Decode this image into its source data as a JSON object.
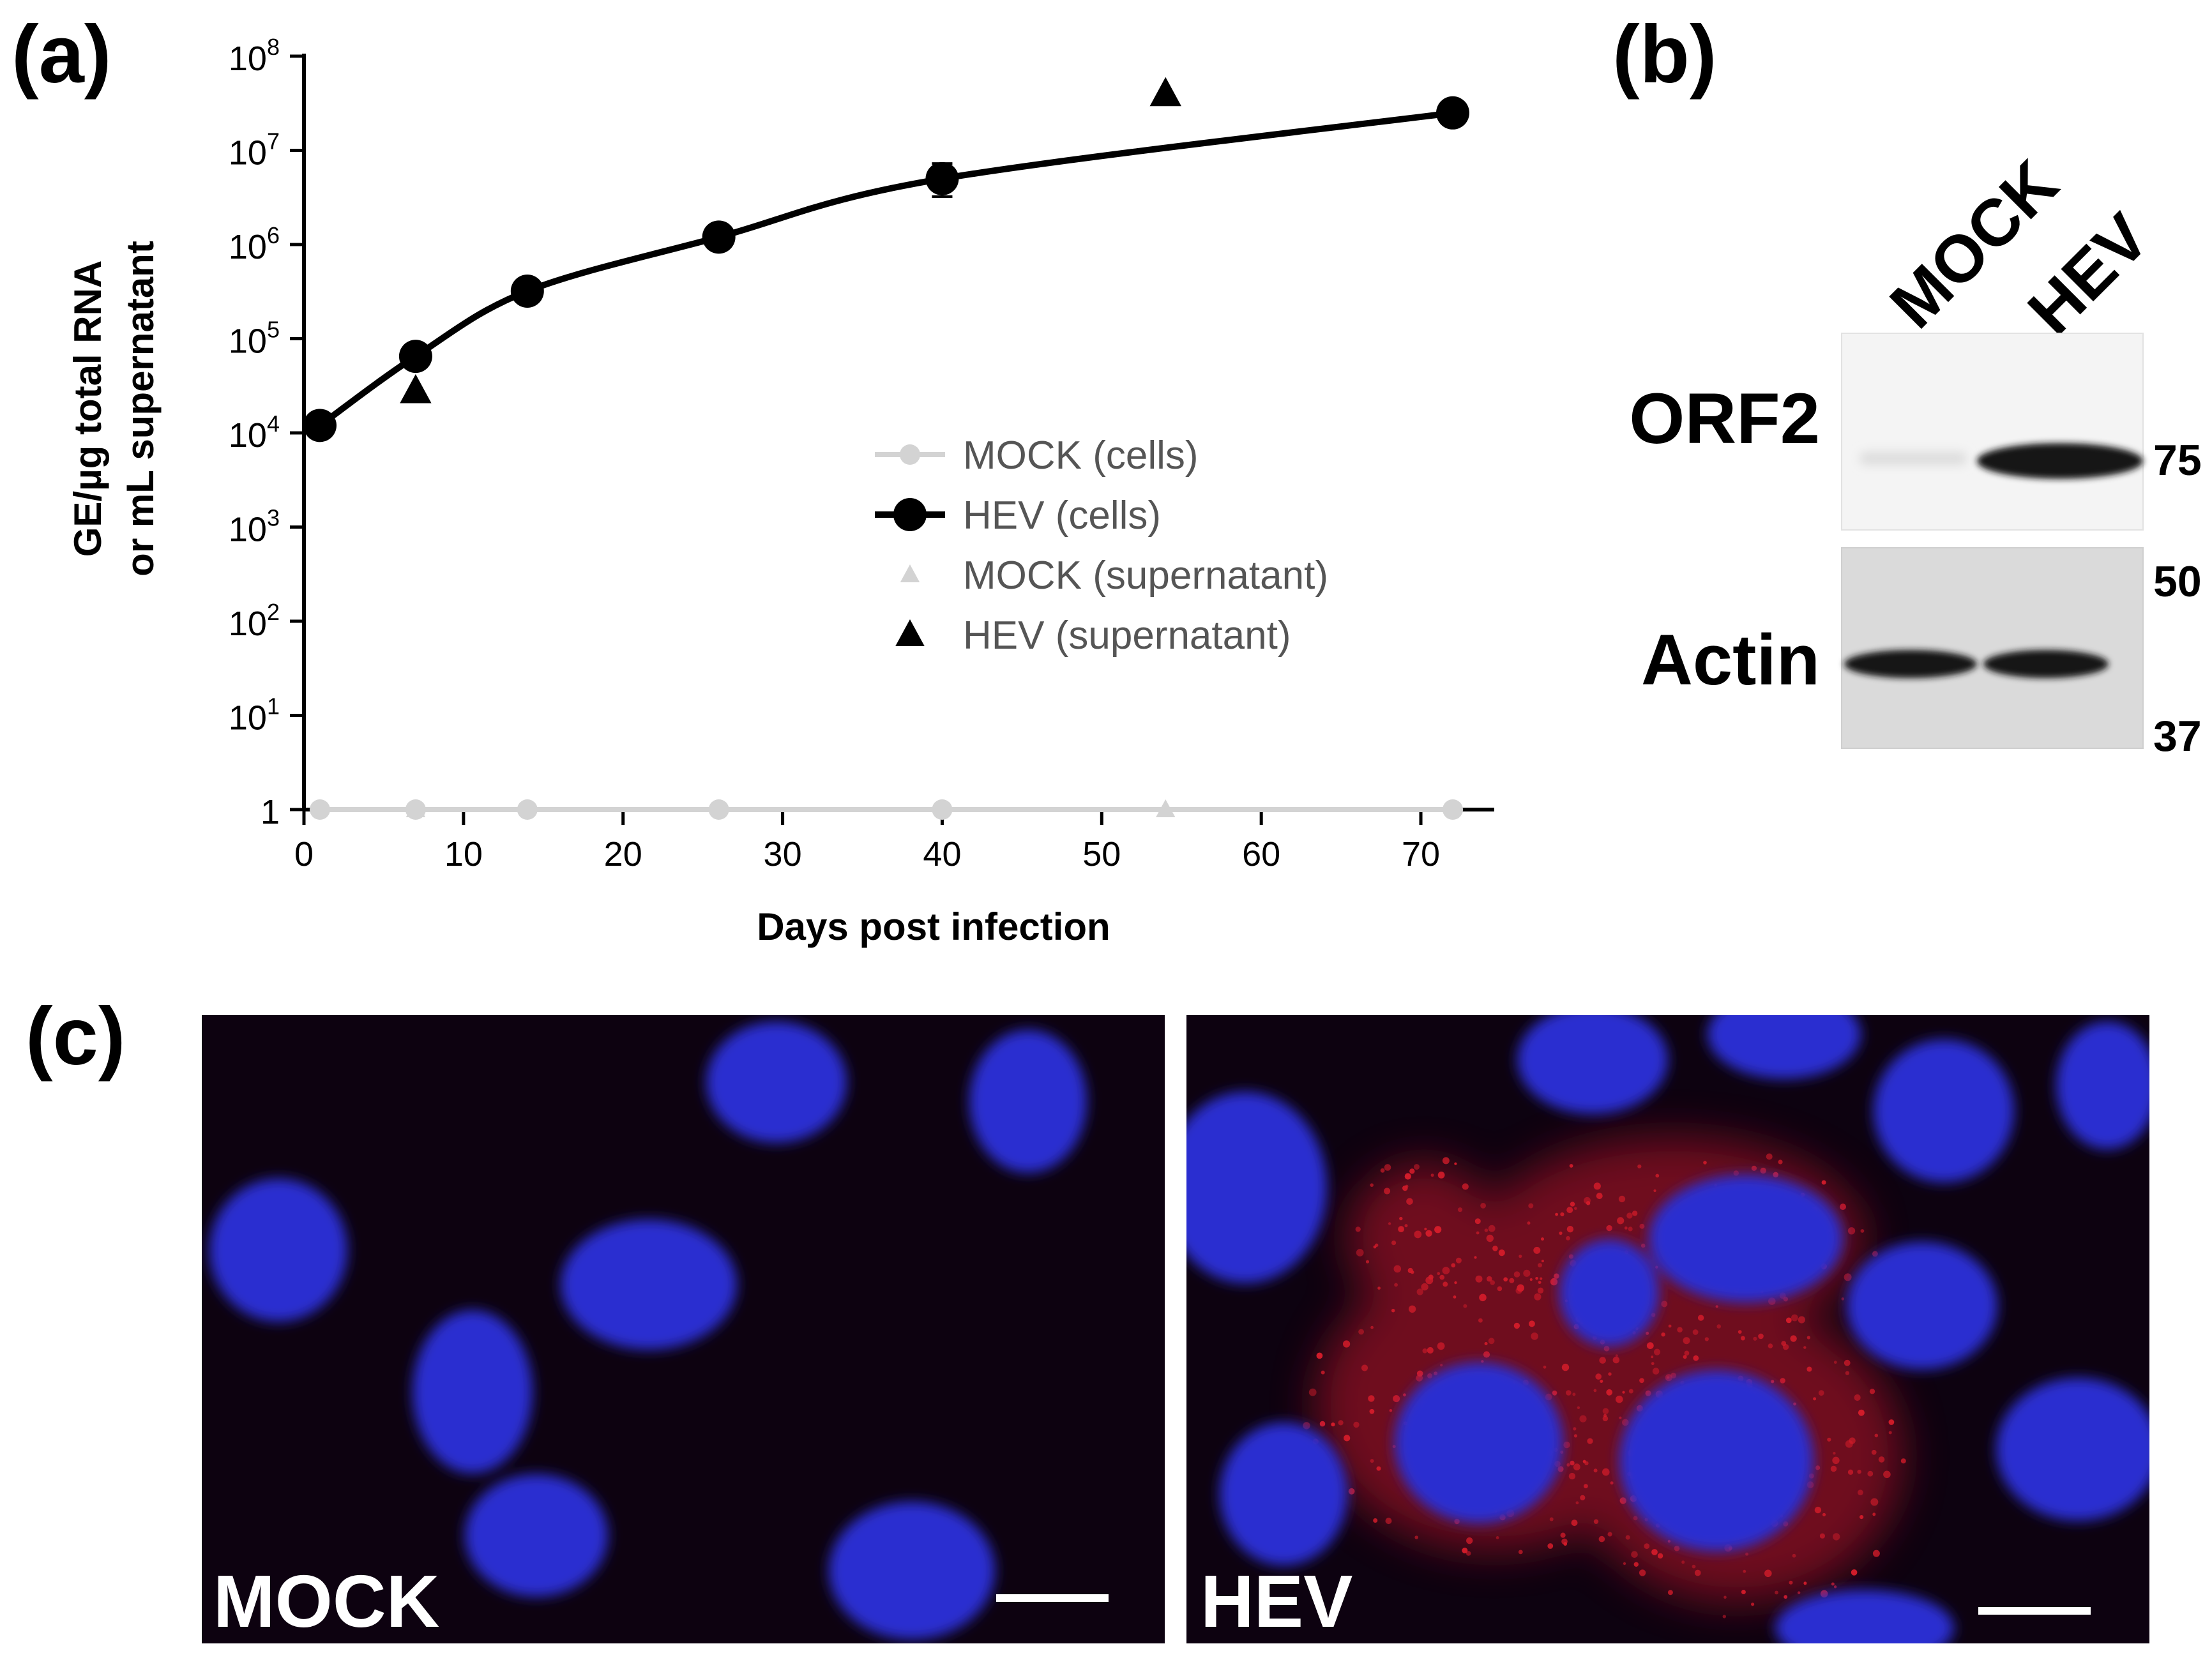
{
  "panels": {
    "a": {
      "label": "(a)"
    },
    "b": {
      "label": "(b)"
    },
    "c": {
      "label": "(c)"
    }
  },
  "chart_data": {
    "type": "line",
    "title": "",
    "xlabel": "Days post infection",
    "ylabel_line1": "GE/µg total RNA",
    "ylabel_line2": "or mL supernatant",
    "xlim": [
      0,
      73
    ],
    "xticks": [
      0,
      10,
      20,
      30,
      40,
      50,
      60,
      70
    ],
    "y_scale": "log",
    "ylim": [
      1,
      100000000
    ],
    "yticks": [
      {
        "value": 1,
        "base": "1",
        "exp": ""
      },
      {
        "value": 10,
        "base": "10",
        "exp": "1"
      },
      {
        "value": 100,
        "base": "10",
        "exp": "2"
      },
      {
        "value": 1000,
        "base": "10",
        "exp": "3"
      },
      {
        "value": 10000,
        "base": "10",
        "exp": "4"
      },
      {
        "value": 100000,
        "base": "10",
        "exp": "5"
      },
      {
        "value": 1000000,
        "base": "10",
        "exp": "6"
      },
      {
        "value": 10000000,
        "base": "10",
        "exp": "7"
      },
      {
        "value": 100000000,
        "base": "10",
        "exp": "8"
      }
    ],
    "legend_position": "center-right",
    "series": [
      {
        "name": "MOCK (cells)",
        "marker": "circle",
        "line": true,
        "color": "#d3d3d3",
        "x": [
          1,
          7,
          14,
          26,
          40,
          72
        ],
        "y": [
          1,
          1,
          1,
          1,
          1,
          1
        ]
      },
      {
        "name": "HEV (cells)",
        "marker": "circle",
        "line": true,
        "color": "#000000",
        "x": [
          1,
          7,
          14,
          26,
          40,
          72
        ],
        "y": [
          12000,
          65000,
          320000,
          1200000,
          5000000,
          25000000
        ],
        "error_at_x": 40
      },
      {
        "name": "MOCK (supernatant)",
        "marker": "triangle",
        "line": false,
        "color": "#d3d3d3",
        "x": [
          7,
          54
        ],
        "y": [
          1,
          1
        ]
      },
      {
        "name": "HEV (supernatant)",
        "marker": "triangle",
        "line": false,
        "color": "#000000",
        "x": [
          7,
          54
        ],
        "y": [
          28000,
          40000000
        ]
      }
    ]
  },
  "western_blot": {
    "lanes": [
      "MOCK",
      "HEV"
    ],
    "rows": [
      {
        "label": "ORF2",
        "bands": [
          "none",
          "strong"
        ]
      },
      {
        "label": "Actin",
        "bands": [
          "strong",
          "strong"
        ]
      }
    ],
    "markers": [
      "75",
      "50",
      "37"
    ]
  },
  "microscopy": {
    "images": [
      {
        "label": "MOCK",
        "stain": "nuclei blue",
        "red_signal": "none"
      },
      {
        "label": "HEV",
        "stain": "nuclei blue",
        "red_signal": "cytoplasmic red puncta"
      }
    ],
    "colors": {
      "background": "#0d0210",
      "nucleus": "#2a2fd0",
      "orf2": "#d21c2a"
    }
  }
}
